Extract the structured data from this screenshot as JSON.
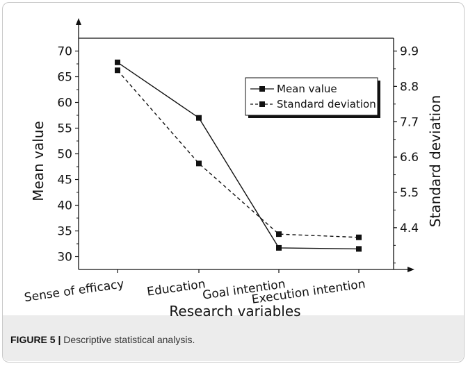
{
  "chart_data": {
    "type": "line",
    "categories": [
      "Sense of efficacy",
      "Education",
      "Goal intention",
      "Execution intention"
    ],
    "series": [
      {
        "name": "Mean value",
        "values": [
          67.8,
          57.0,
          31.7,
          31.5
        ],
        "axis": "left",
        "style": "solid",
        "marker": "square"
      },
      {
        "name": "Standard deviation",
        "values": [
          9.3,
          6.4,
          4.2,
          4.1
        ],
        "axis": "right",
        "style": "dashed",
        "marker": "square"
      }
    ],
    "xlabel": "Research variables",
    "ylabel_left": "Mean value",
    "ylabel_right": "Standard deviation",
    "left_ylim": [
      27.5,
      72.5
    ],
    "left_ticks": [
      30,
      35,
      40,
      45,
      50,
      55,
      60,
      65,
      70
    ],
    "right_ylim": [
      3.1,
      10.3
    ],
    "right_ticks": [
      "4.4",
      "5.5",
      "6.6",
      "7.7",
      "8.8",
      "9.9"
    ],
    "grid": false,
    "legend_position": "top-right",
    "line_color": "#111111"
  },
  "caption": {
    "label": "FIGURE 5 |",
    "text": "Descriptive statistical analysis."
  }
}
